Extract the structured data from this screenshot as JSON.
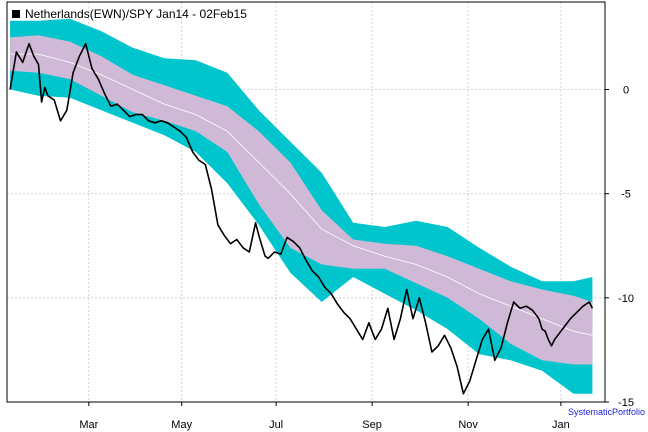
{
  "chart_data": {
    "type": "line",
    "title": "",
    "legend": {
      "label": "Netherlands(EWN)/SPY Jan14 - 02Feb15",
      "placement": "top-left",
      "swatch_color": "#000000"
    },
    "xlabel": "",
    "ylabel": "",
    "x_ticks": [
      "Mar",
      "May",
      "Jul",
      "Sep",
      "Nov",
      "Jan"
    ],
    "y_ticks": [
      0,
      -5,
      -10,
      -15
    ],
    "ylim": [
      -15,
      4.2
    ],
    "xlim_days": [
      0,
      380
    ],
    "grid": true,
    "credit": "SystematicPortfolio",
    "colors": {
      "outer_band": "#00c5cd",
      "inner_band": "#cfb9d6",
      "mean_line": "#ffffff",
      "price_line": "#000000",
      "grid": "#c8c8c8",
      "credit": "#1f1fd8"
    },
    "band_days": [
      2,
      20,
      40,
      60,
      80,
      100,
      120,
      140,
      160,
      180,
      200,
      220,
      240,
      260,
      280,
      300,
      320,
      340,
      360,
      372
    ],
    "mean": [
      1.7,
      1.7,
      1.3,
      0.7,
      0.0,
      -0.7,
      -1.2,
      -2.0,
      -3.5,
      -5.0,
      -6.7,
      -7.5,
      -8.0,
      -8.4,
      -9.0,
      -9.8,
      -10.4,
      -11.0,
      -11.6,
      -11.8
    ],
    "inner_upper": [
      2.5,
      2.6,
      2.3,
      1.6,
      0.7,
      0.2,
      -0.3,
      -0.8,
      -2.0,
      -3.5,
      -5.8,
      -7.2,
      -7.4,
      -7.5,
      -8.0,
      -8.6,
      -9.2,
      -9.6,
      -9.9,
      -10.2
    ],
    "inner_lower": [
      0.9,
      0.8,
      0.5,
      -0.3,
      -1.1,
      -1.5,
      -2.0,
      -3.0,
      -5.5,
      -7.6,
      -8.4,
      -8.6,
      -8.6,
      -9.3,
      -10.0,
      -11.0,
      -12.2,
      -13.0,
      -13.2,
      -13.2
    ],
    "outer_upper": [
      3.3,
      3.3,
      3.4,
      2.8,
      2.0,
      1.5,
      1.4,
      0.8,
      -1.0,
      -2.5,
      -4.0,
      -6.4,
      -6.6,
      -6.3,
      -6.6,
      -7.6,
      -8.5,
      -9.2,
      -9.2,
      -9.0
    ],
    "outer_lower": [
      0.0,
      -0.3,
      -0.4,
      -1.0,
      -1.6,
      -2.2,
      -3.0,
      -4.5,
      -6.5,
      -8.8,
      -10.2,
      -9.0,
      -9.8,
      -10.6,
      -11.5,
      -12.7,
      -13.0,
      -13.5,
      -14.6,
      -14.6
    ],
    "series": [
      {
        "x": [
          2,
          6,
          10,
          14,
          17,
          20,
          22,
          24,
          26,
          30,
          34,
          38,
          42,
          46,
          50,
          54,
          58,
          62,
          66,
          70,
          74,
          78,
          82,
          86,
          90,
          94,
          98,
          102,
          106,
          110,
          114,
          118,
          122,
          126,
          130,
          134,
          138,
          142,
          146,
          150,
          154,
          158,
          160,
          162,
          164,
          166,
          170,
          174,
          178,
          182,
          186,
          190,
          194,
          198,
          202,
          206,
          210,
          214,
          218,
          222,
          226,
          230,
          234,
          238,
          242,
          246,
          250,
          254,
          258,
          262,
          266,
          270,
          274,
          278,
          282,
          286,
          290,
          294,
          298,
          302,
          306,
          310,
          314,
          318,
          322,
          326,
          330,
          334,
          338,
          340,
          342,
          344,
          346,
          348,
          350,
          352,
          354,
          358,
          362,
          366,
          370,
          372
        ],
        "y": [
          0.0,
          1.8,
          1.3,
          2.2,
          1.6,
          1.2,
          -0.6,
          0.1,
          -0.3,
          -0.5,
          -1.5,
          -1.0,
          0.8,
          1.6,
          2.2,
          1.0,
          0.5,
          -0.2,
          -0.8,
          -0.7,
          -1.0,
          -1.3,
          -1.2,
          -1.2,
          -1.5,
          -1.6,
          -1.5,
          -1.6,
          -1.8,
          -2.0,
          -2.3,
          -3.0,
          -3.4,
          -3.6,
          -4.8,
          -6.5,
          -7.0,
          -7.4,
          -7.2,
          -7.6,
          -7.8,
          -6.4,
          -7.0,
          -7.5,
          -8.0,
          -8.1,
          -7.8,
          -7.9,
          -7.1,
          -7.3,
          -7.6,
          -8.2,
          -8.7,
          -9.0,
          -9.5,
          -9.8,
          -10.3,
          -10.7,
          -11.0,
          -11.5,
          -12.0,
          -11.2,
          -12.0,
          -11.5,
          -10.5,
          -12.0,
          -11.0,
          -9.6,
          -11.0,
          -10.0,
          -11.2,
          -12.6,
          -12.3,
          -11.8,
          -12.4,
          -13.3,
          -14.6,
          -14.0,
          -13.0,
          -12.0,
          -11.5,
          -13.0,
          -12.4,
          -11.2,
          -10.2,
          -10.5,
          -10.4,
          -10.6,
          -11.0,
          -11.5,
          -11.6,
          -12.0,
          -12.3,
          -12.0,
          -11.8,
          -11.6,
          -11.4,
          -11.0,
          -10.7,
          -10.4,
          -10.2,
          -10.5
        ]
      }
    ]
  }
}
